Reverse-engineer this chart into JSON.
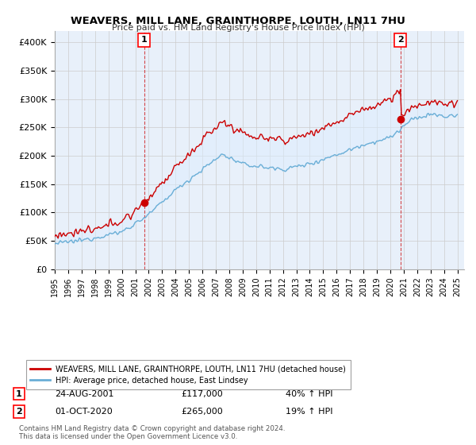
{
  "title": "WEAVERS, MILL LANE, GRAINTHORPE, LOUTH, LN11 7HU",
  "subtitle": "Price paid vs. HM Land Registry's House Price Index (HPI)",
  "ylabel_ticks": [
    "£0",
    "£50K",
    "£100K",
    "£150K",
    "£200K",
    "£250K",
    "£300K",
    "£350K",
    "£400K"
  ],
  "ytick_values": [
    0,
    50000,
    100000,
    150000,
    200000,
    250000,
    300000,
    350000,
    400000
  ],
  "ylim": [
    0,
    420000
  ],
  "xlim_start": 1995.25,
  "xlim_end": 2025.5,
  "xtick_years": [
    1995,
    1996,
    1997,
    1998,
    1999,
    2000,
    2001,
    2002,
    2003,
    2004,
    2005,
    2006,
    2007,
    2008,
    2009,
    2010,
    2011,
    2012,
    2013,
    2014,
    2015,
    2016,
    2017,
    2018,
    2019,
    2020,
    2021,
    2022,
    2023,
    2024,
    2025
  ],
  "hpi_color": "#6aaed6",
  "price_color": "#cc0000",
  "fill_color": "#ddeeff",
  "plot_bg_color": "#e8f0fa",
  "marker1_x": 2001.65,
  "marker1_y": 117000,
  "marker1_label": "1",
  "marker1_date": "24-AUG-2001",
  "marker1_price": "£117,000",
  "marker1_hpi": "40% ↑ HPI",
  "marker2_x": 2020.75,
  "marker2_y": 265000,
  "marker2_label": "2",
  "marker2_date": "01-OCT-2020",
  "marker2_price": "£265,000",
  "marker2_hpi": "19% ↑ HPI",
  "legend_label_red": "WEAVERS, MILL LANE, GRAINTHORPE, LOUTH, LN11 7HU (detached house)",
  "legend_label_blue": "HPI: Average price, detached house, East Lindsey",
  "footnote": "Contains HM Land Registry data © Crown copyright and database right 2024.\nThis data is licensed under the Open Government Licence v3.0.",
  "background_color": "#ffffff",
  "grid_color": "#cccccc"
}
